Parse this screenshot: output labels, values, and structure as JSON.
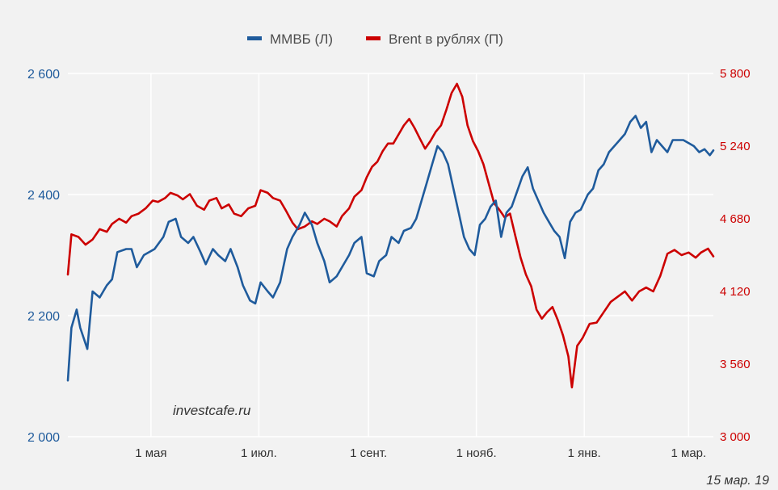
{
  "chart_data": {
    "type": "line",
    "legend_position": "top-center",
    "grid": true,
    "x_range": [
      "2018-03-15",
      "2019-03-15"
    ],
    "x_ticks": [
      {
        "date": "2018-05-01",
        "label": "1 мая"
      },
      {
        "date": "2018-07-01",
        "label": "1 июл."
      },
      {
        "date": "2018-09-01",
        "label": "1 сент."
      },
      {
        "date": "2018-11-01",
        "label": "1 нояб."
      },
      {
        "date": "2019-01-01",
        "label": "1 янв."
      },
      {
        "date": "2019-03-01",
        "label": "1 мар."
      }
    ],
    "y_left": {
      "min": 2000,
      "max": 2600,
      "ticks": [
        {
          "v": 2000,
          "label": "2 000"
        },
        {
          "v": 2200,
          "label": "2 200"
        },
        {
          "v": 2400,
          "label": "2 400"
        },
        {
          "v": 2600,
          "label": "2 600"
        }
      ]
    },
    "y_right": {
      "min": 3000,
      "max": 5800,
      "ticks": [
        {
          "v": 3000,
          "label": "3 000"
        },
        {
          "v": 3560,
          "label": "3 560"
        },
        {
          "v": 4120,
          "label": "4 120"
        },
        {
          "v": 4680,
          "label": "4 680"
        },
        {
          "v": 5240,
          "label": "5 240"
        },
        {
          "v": 5800,
          "label": "5 800"
        }
      ]
    },
    "series": [
      {
        "name": "ММВБ (Л)",
        "axis": "left",
        "color": "#1f5b9c",
        "points": [
          [
            "2018-03-15",
            2093
          ],
          [
            "2018-03-17",
            2180
          ],
          [
            "2018-03-20",
            2210
          ],
          [
            "2018-03-22",
            2180
          ],
          [
            "2018-03-26",
            2145
          ],
          [
            "2018-03-29",
            2240
          ],
          [
            "2018-04-02",
            2230
          ],
          [
            "2018-04-06",
            2250
          ],
          [
            "2018-04-09",
            2260
          ],
          [
            "2018-04-12",
            2305
          ],
          [
            "2018-04-17",
            2310
          ],
          [
            "2018-04-20",
            2310
          ],
          [
            "2018-04-23",
            2280
          ],
          [
            "2018-04-27",
            2300
          ],
          [
            "2018-05-03",
            2310
          ],
          [
            "2018-05-08",
            2330
          ],
          [
            "2018-05-11",
            2355
          ],
          [
            "2018-05-15",
            2360
          ],
          [
            "2018-05-18",
            2330
          ],
          [
            "2018-05-22",
            2320
          ],
          [
            "2018-05-25",
            2330
          ],
          [
            "2018-05-29",
            2305
          ],
          [
            "2018-06-01",
            2285
          ],
          [
            "2018-06-05",
            2310
          ],
          [
            "2018-06-08",
            2300
          ],
          [
            "2018-06-12",
            2290
          ],
          [
            "2018-06-15",
            2310
          ],
          [
            "2018-06-19",
            2280
          ],
          [
            "2018-06-22",
            2250
          ],
          [
            "2018-06-26",
            2225
          ],
          [
            "2018-06-29",
            2220
          ],
          [
            "2018-07-02",
            2255
          ],
          [
            "2018-07-06",
            2240
          ],
          [
            "2018-07-09",
            2230
          ],
          [
            "2018-07-13",
            2255
          ],
          [
            "2018-07-17",
            2310
          ],
          [
            "2018-07-20",
            2330
          ],
          [
            "2018-07-24",
            2350
          ],
          [
            "2018-07-27",
            2370
          ],
          [
            "2018-07-31",
            2350
          ],
          [
            "2018-08-03",
            2320
          ],
          [
            "2018-08-07",
            2290
          ],
          [
            "2018-08-10",
            2255
          ],
          [
            "2018-08-14",
            2265
          ],
          [
            "2018-08-17",
            2280
          ],
          [
            "2018-08-21",
            2300
          ],
          [
            "2018-08-24",
            2320
          ],
          [
            "2018-08-28",
            2330
          ],
          [
            "2018-08-31",
            2270
          ],
          [
            "2018-09-04",
            2265
          ],
          [
            "2018-09-07",
            2290
          ],
          [
            "2018-09-11",
            2300
          ],
          [
            "2018-09-14",
            2330
          ],
          [
            "2018-09-18",
            2320
          ],
          [
            "2018-09-21",
            2340
          ],
          [
            "2018-09-25",
            2345
          ],
          [
            "2018-09-28",
            2360
          ],
          [
            "2018-10-01",
            2390
          ],
          [
            "2018-10-04",
            2420
          ],
          [
            "2018-10-07",
            2450
          ],
          [
            "2018-10-10",
            2480
          ],
          [
            "2018-10-13",
            2470
          ],
          [
            "2018-10-16",
            2450
          ],
          [
            "2018-10-19",
            2410
          ],
          [
            "2018-10-22",
            2370
          ],
          [
            "2018-10-25",
            2330
          ],
          [
            "2018-10-28",
            2310
          ],
          [
            "2018-10-31",
            2300
          ],
          [
            "2018-11-03",
            2350
          ],
          [
            "2018-11-06",
            2360
          ],
          [
            "2018-11-09",
            2380
          ],
          [
            "2018-11-12",
            2390
          ],
          [
            "2018-11-15",
            2330
          ],
          [
            "2018-11-18",
            2370
          ],
          [
            "2018-11-21",
            2380
          ],
          [
            "2018-11-24",
            2405
          ],
          [
            "2018-11-27",
            2430
          ],
          [
            "2018-11-30",
            2445
          ],
          [
            "2018-12-03",
            2410
          ],
          [
            "2018-12-06",
            2390
          ],
          [
            "2018-12-09",
            2370
          ],
          [
            "2018-12-12",
            2355
          ],
          [
            "2018-12-15",
            2340
          ],
          [
            "2018-12-18",
            2330
          ],
          [
            "2018-12-21",
            2295
          ],
          [
            "2018-12-24",
            2355
          ],
          [
            "2018-12-27",
            2370
          ],
          [
            "2018-12-30",
            2375
          ],
          [
            "2019-01-03",
            2400
          ],
          [
            "2019-01-06",
            2410
          ],
          [
            "2019-01-09",
            2440
          ],
          [
            "2019-01-12",
            2450
          ],
          [
            "2019-01-15",
            2470
          ],
          [
            "2019-01-18",
            2480
          ],
          [
            "2019-01-21",
            2490
          ],
          [
            "2019-01-24",
            2500
          ],
          [
            "2019-01-27",
            2520
          ],
          [
            "2019-01-30",
            2530
          ],
          [
            "2019-02-02",
            2510
          ],
          [
            "2019-02-05",
            2520
          ],
          [
            "2019-02-08",
            2470
          ],
          [
            "2019-02-11",
            2490
          ],
          [
            "2019-02-14",
            2480
          ],
          [
            "2019-02-17",
            2470
          ],
          [
            "2019-02-20",
            2490
          ],
          [
            "2019-02-23",
            2490
          ],
          [
            "2019-02-26",
            2490
          ],
          [
            "2019-03-01",
            2485
          ],
          [
            "2019-03-04",
            2480
          ],
          [
            "2019-03-07",
            2470
          ],
          [
            "2019-03-10",
            2475
          ],
          [
            "2019-03-13",
            2465
          ],
          [
            "2019-03-15",
            2473
          ]
        ]
      },
      {
        "name": "Brent в рублях (П)",
        "axis": "right",
        "color": "#cc0000",
        "points": [
          [
            "2018-03-15",
            4250
          ],
          [
            "2018-03-17",
            4560
          ],
          [
            "2018-03-21",
            4540
          ],
          [
            "2018-03-25",
            4480
          ],
          [
            "2018-03-29",
            4520
          ],
          [
            "2018-04-02",
            4600
          ],
          [
            "2018-04-06",
            4580
          ],
          [
            "2018-04-09",
            4640
          ],
          [
            "2018-04-13",
            4680
          ],
          [
            "2018-04-17",
            4650
          ],
          [
            "2018-04-20",
            4700
          ],
          [
            "2018-04-24",
            4720
          ],
          [
            "2018-04-28",
            4760
          ],
          [
            "2018-05-02",
            4820
          ],
          [
            "2018-05-05",
            4810
          ],
          [
            "2018-05-09",
            4840
          ],
          [
            "2018-05-12",
            4880
          ],
          [
            "2018-05-16",
            4860
          ],
          [
            "2018-05-19",
            4830
          ],
          [
            "2018-05-23",
            4870
          ],
          [
            "2018-05-27",
            4780
          ],
          [
            "2018-05-31",
            4750
          ],
          [
            "2018-06-03",
            4820
          ],
          [
            "2018-06-07",
            4840
          ],
          [
            "2018-06-10",
            4760
          ],
          [
            "2018-06-14",
            4790
          ],
          [
            "2018-06-17",
            4720
          ],
          [
            "2018-06-21",
            4700
          ],
          [
            "2018-06-25",
            4760
          ],
          [
            "2018-06-29",
            4780
          ],
          [
            "2018-07-02",
            4900
          ],
          [
            "2018-07-06",
            4880
          ],
          [
            "2018-07-09",
            4840
          ],
          [
            "2018-07-13",
            4820
          ],
          [
            "2018-07-16",
            4750
          ],
          [
            "2018-07-20",
            4650
          ],
          [
            "2018-07-23",
            4600
          ],
          [
            "2018-07-27",
            4620
          ],
          [
            "2018-07-31",
            4660
          ],
          [
            "2018-08-03",
            4640
          ],
          [
            "2018-08-07",
            4680
          ],
          [
            "2018-08-10",
            4660
          ],
          [
            "2018-08-14",
            4620
          ],
          [
            "2018-08-17",
            4700
          ],
          [
            "2018-08-21",
            4760
          ],
          [
            "2018-08-24",
            4850
          ],
          [
            "2018-08-28",
            4900
          ],
          [
            "2018-08-31",
            5000
          ],
          [
            "2018-09-03",
            5080
          ],
          [
            "2018-09-06",
            5120
          ],
          [
            "2018-09-09",
            5200
          ],
          [
            "2018-09-12",
            5260
          ],
          [
            "2018-09-15",
            5260
          ],
          [
            "2018-09-18",
            5330
          ],
          [
            "2018-09-21",
            5400
          ],
          [
            "2018-09-24",
            5450
          ],
          [
            "2018-09-27",
            5380
          ],
          [
            "2018-09-30",
            5300
          ],
          [
            "2018-10-03",
            5220
          ],
          [
            "2018-10-06",
            5280
          ],
          [
            "2018-10-09",
            5350
          ],
          [
            "2018-10-12",
            5400
          ],
          [
            "2018-10-15",
            5520
          ],
          [
            "2018-10-18",
            5650
          ],
          [
            "2018-10-21",
            5720
          ],
          [
            "2018-10-24",
            5620
          ],
          [
            "2018-10-27",
            5400
          ],
          [
            "2018-10-30",
            5280
          ],
          [
            "2018-11-02",
            5200
          ],
          [
            "2018-11-05",
            5100
          ],
          [
            "2018-11-08",
            4950
          ],
          [
            "2018-11-11",
            4800
          ],
          [
            "2018-11-14",
            4750
          ],
          [
            "2018-11-17",
            4690
          ],
          [
            "2018-11-20",
            4720
          ],
          [
            "2018-11-23",
            4550
          ],
          [
            "2018-11-26",
            4380
          ],
          [
            "2018-11-29",
            4250
          ],
          [
            "2018-12-02",
            4160
          ],
          [
            "2018-12-05",
            3980
          ],
          [
            "2018-12-08",
            3910
          ],
          [
            "2018-12-11",
            3960
          ],
          [
            "2018-12-14",
            4000
          ],
          [
            "2018-12-17",
            3900
          ],
          [
            "2018-12-20",
            3780
          ],
          [
            "2018-12-23",
            3620
          ],
          [
            "2018-12-25",
            3380
          ],
          [
            "2018-12-28",
            3700
          ],
          [
            "2018-12-31",
            3760
          ],
          [
            "2019-01-04",
            3870
          ],
          [
            "2019-01-08",
            3880
          ],
          [
            "2019-01-12",
            3960
          ],
          [
            "2019-01-16",
            4040
          ],
          [
            "2019-01-20",
            4080
          ],
          [
            "2019-01-24",
            4120
          ],
          [
            "2019-01-28",
            4050
          ],
          [
            "2019-02-01",
            4120
          ],
          [
            "2019-02-05",
            4150
          ],
          [
            "2019-02-09",
            4120
          ],
          [
            "2019-02-13",
            4240
          ],
          [
            "2019-02-17",
            4410
          ],
          [
            "2019-02-21",
            4440
          ],
          [
            "2019-02-25",
            4400
          ],
          [
            "2019-03-01",
            4420
          ],
          [
            "2019-03-05",
            4380
          ],
          [
            "2019-03-08",
            4420
          ],
          [
            "2019-03-12",
            4450
          ],
          [
            "2019-03-15",
            4390
          ]
        ]
      }
    ],
    "watermark": "investcafe.ru",
    "date_label": "15 мар. 19"
  }
}
